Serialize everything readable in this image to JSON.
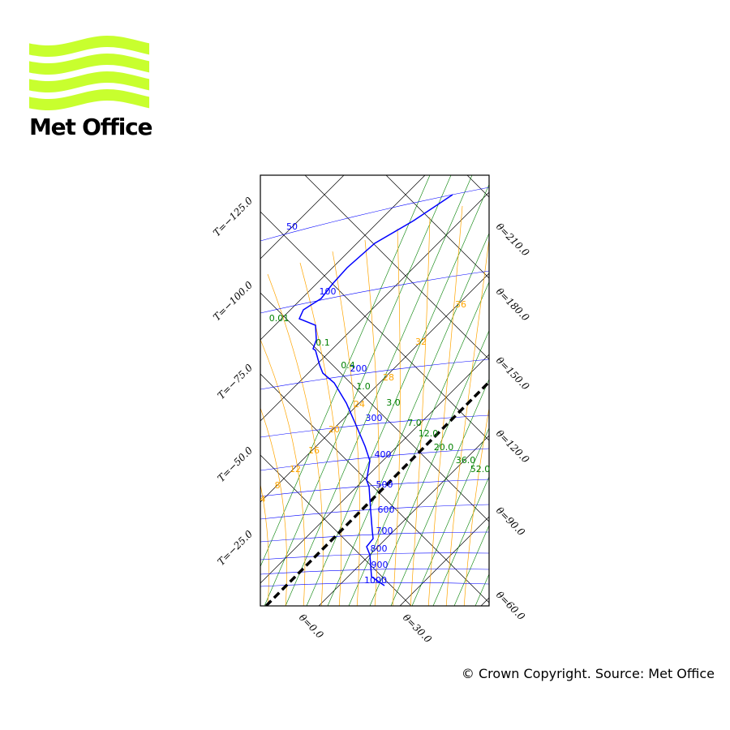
{
  "logo": {
    "text": "Met Office",
    "colors": {
      "waves": "#c8ff2e",
      "text": "#000000"
    }
  },
  "copyright": "© Crown Copyright. Source: Met Office",
  "colors": {
    "isobar": "#0000ff",
    "mixing_ratio": "#008000",
    "wet_adiabat": "#ffa500",
    "grid": "#000000",
    "profile": "#0000ff",
    "parcel": "#000000"
  },
  "chart_data": {
    "type": "tephigram",
    "temperature_ticks": [
      "T=−125.0",
      "T=−100.0",
      "T=−75.0",
      "T=−50.0",
      "T=−25.0"
    ],
    "theta_ticks": [
      "θ=0.0",
      "θ=30.0",
      "θ=60.0",
      "θ=90.0",
      "θ=120.0",
      "θ=150.0",
      "θ=180.0",
      "θ=210.0"
    ],
    "isobar_labels": [
      "50",
      "100",
      "200",
      "300",
      "400",
      "500",
      "600",
      "700",
      "800",
      "900",
      "1000"
    ],
    "mixing_ratio_labels": [
      "0.01",
      "0.1",
      "0.4",
      "1.0",
      "3.0",
      "7.0",
      "12.0",
      "20.0",
      "36.0",
      "52.0"
    ],
    "wet_adiabat_labels": [
      "4",
      "8",
      "12",
      "16",
      "20",
      "24",
      "28",
      "32",
      "36"
    ]
  }
}
